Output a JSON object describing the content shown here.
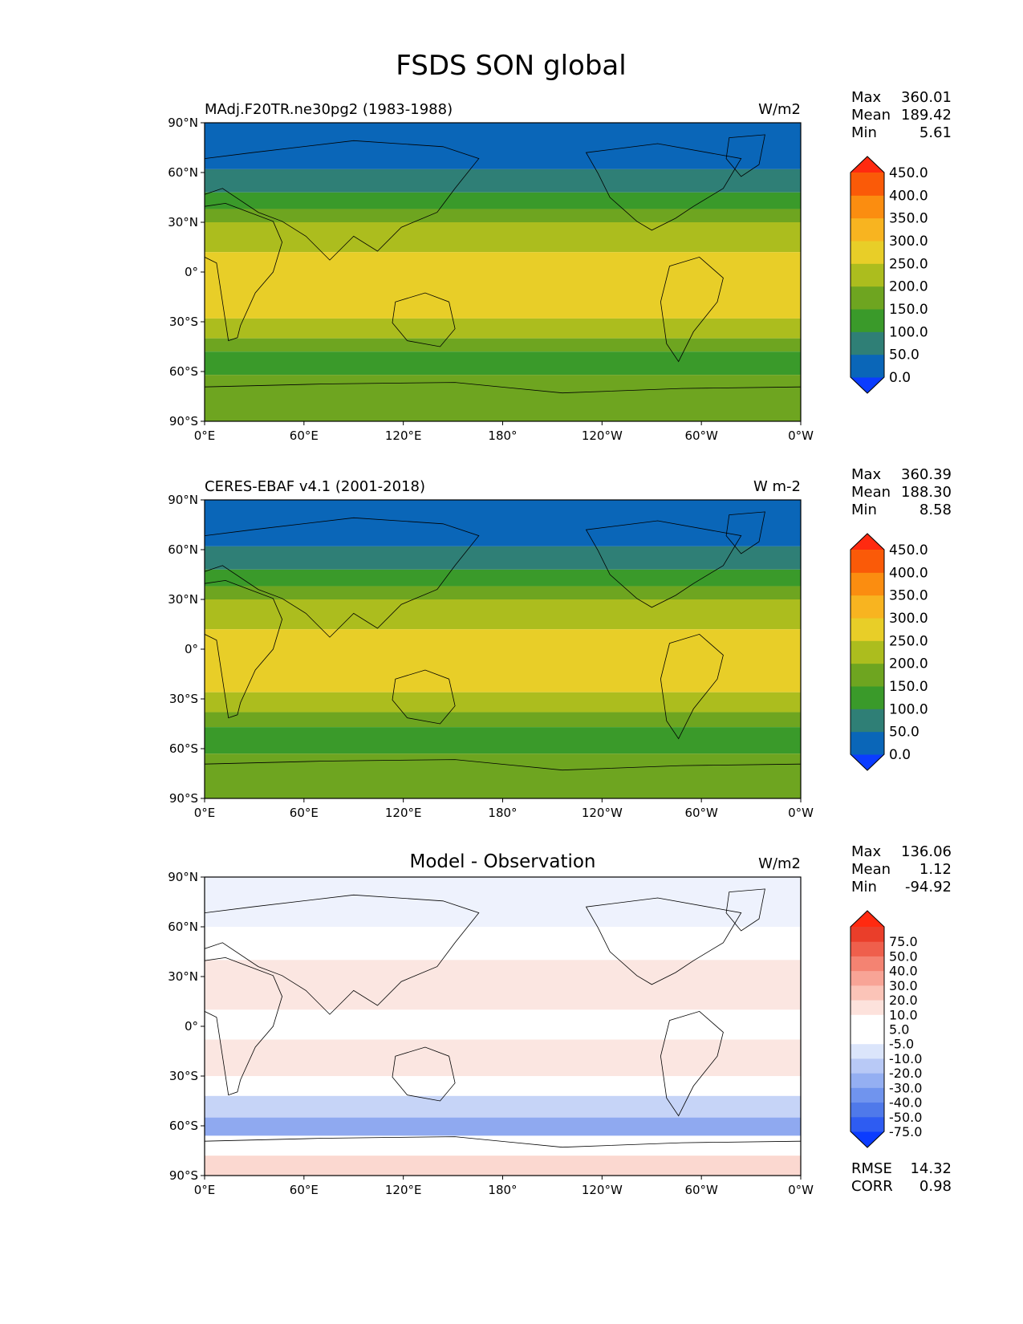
{
  "figure": {
    "title": "FSDS SON global"
  },
  "axes": {
    "lat_ticks": [
      "90°N",
      "60°N",
      "30°N",
      "0°",
      "30°S",
      "60°S",
      "90°S"
    ],
    "lon_ticks": [
      "0°E",
      "60°E",
      "120°E",
      "180°",
      "120°W",
      "60°W",
      "0°W"
    ]
  },
  "panels": [
    {
      "id": "model",
      "left_title": "MAdj.F20TR.ne30pg2 (1983-1988)",
      "center_title": "",
      "units": "W/m2",
      "stats": [
        {
          "label": "Max",
          "value": "360.01"
        },
        {
          "label": "Mean",
          "value": "189.42"
        },
        {
          "label": "Min",
          "value": "5.61"
        }
      ],
      "colorbar": {
        "colors": [
          "#0b3cff",
          "#0a66b8",
          "#2f7f76",
          "#3a9a2a",
          "#6ea520",
          "#acbd1e",
          "#e8ce28",
          "#f8b420",
          "#fb8d10",
          "#fa5a08",
          "#ff2a10"
        ],
        "labels": [
          "0.0",
          "50.0",
          "100.0",
          "150.0",
          "200.0",
          "250.0",
          "300.0",
          "350.0",
          "400.0",
          "450.0"
        ]
      },
      "bands": [
        {
          "lat_from": 90,
          "lat_to": 62,
          "color": "#0a66b8"
        },
        {
          "lat_from": 62,
          "lat_to": 48,
          "color": "#2f7f76"
        },
        {
          "lat_from": 48,
          "lat_to": 38,
          "color": "#3a9a2a"
        },
        {
          "lat_from": 38,
          "lat_to": 30,
          "color": "#6ea520"
        },
        {
          "lat_from": 30,
          "lat_to": 12,
          "color": "#acbd1e"
        },
        {
          "lat_from": 12,
          "lat_to": -28,
          "color": "#e8ce28"
        },
        {
          "lat_from": -28,
          "lat_to": -40,
          "color": "#acbd1e"
        },
        {
          "lat_from": -40,
          "lat_to": -48,
          "color": "#6ea520"
        },
        {
          "lat_from": -48,
          "lat_to": -62,
          "color": "#3a9a2a"
        },
        {
          "lat_from": -62,
          "lat_to": -90,
          "color": "#6ea520"
        }
      ]
    },
    {
      "id": "obs",
      "left_title": "CERES-EBAF v4.1 (2001-2018)",
      "center_title": "",
      "units": "W m-2",
      "stats": [
        {
          "label": "Max",
          "value": "360.39"
        },
        {
          "label": "Mean",
          "value": "188.30"
        },
        {
          "label": "Min",
          "value": "8.58"
        }
      ],
      "colorbar": {
        "colors": [
          "#0b3cff",
          "#0a66b8",
          "#2f7f76",
          "#3a9a2a",
          "#6ea520",
          "#acbd1e",
          "#e8ce28",
          "#f8b420",
          "#fb8d10",
          "#fa5a08",
          "#ff2a10"
        ],
        "labels": [
          "0.0",
          "50.0",
          "100.0",
          "150.0",
          "200.0",
          "250.0",
          "300.0",
          "350.0",
          "400.0",
          "450.0"
        ]
      },
      "bands": [
        {
          "lat_from": 90,
          "lat_to": 62,
          "color": "#0a66b8"
        },
        {
          "lat_from": 62,
          "lat_to": 48,
          "color": "#2f7f76"
        },
        {
          "lat_from": 48,
          "lat_to": 38,
          "color": "#3a9a2a"
        },
        {
          "lat_from": 38,
          "lat_to": 30,
          "color": "#6ea520"
        },
        {
          "lat_from": 30,
          "lat_to": 12,
          "color": "#acbd1e"
        },
        {
          "lat_from": 12,
          "lat_to": -26,
          "color": "#e8ce28"
        },
        {
          "lat_from": -26,
          "lat_to": -38,
          "color": "#acbd1e"
        },
        {
          "lat_from": -38,
          "lat_to": -47,
          "color": "#6ea520"
        },
        {
          "lat_from": -47,
          "lat_to": -63,
          "color": "#3a9a2a"
        },
        {
          "lat_from": -63,
          "lat_to": -90,
          "color": "#6ea520"
        }
      ]
    },
    {
      "id": "diff",
      "left_title": "",
      "center_title": "Model - Observation",
      "units": "W/m2",
      "stats": [
        {
          "label": "Max",
          "value": "136.06"
        },
        {
          "label": "Mean",
          "value": "1.12"
        },
        {
          "label": "Min",
          "value": "-94.92"
        }
      ],
      "bottom_stats": [
        {
          "label": "RMSE",
          "value": "14.32"
        },
        {
          "label": "CORR",
          "value": "0.98"
        }
      ],
      "colorbar": {
        "colors": [
          "#0b3cff",
          "#2e5cf2",
          "#4f79ea",
          "#7094ee",
          "#94aff2",
          "#b8c9f6",
          "#dbe5fb",
          "#ffffff",
          "#ffffff",
          "#fde2dc",
          "#fbc4b8",
          "#f8a496",
          "#f48372",
          "#ef5f4c",
          "#ea3e2a",
          "#ff2a10"
        ],
        "labels": [
          "-75.0",
          "-50.0",
          "-40.0",
          "-30.0",
          "-20.0",
          "-10.0",
          "-5.0",
          "5.0",
          "10.0",
          "20.0",
          "30.0",
          "40.0",
          "50.0",
          "75.0"
        ]
      },
      "bands": [
        {
          "lat_from": 90,
          "lat_to": 60,
          "color": "#eef2fd"
        },
        {
          "lat_from": 60,
          "lat_to": 40,
          "color": "#ffffff"
        },
        {
          "lat_from": 40,
          "lat_to": 10,
          "color": "#fbe6e1"
        },
        {
          "lat_from": 10,
          "lat_to": -8,
          "color": "#ffffff"
        },
        {
          "lat_from": -8,
          "lat_to": -30,
          "color": "#fbe6e1"
        },
        {
          "lat_from": -30,
          "lat_to": -42,
          "color": "#ffffff"
        },
        {
          "lat_from": -42,
          "lat_to": -55,
          "color": "#c6d4f7"
        },
        {
          "lat_from": -55,
          "lat_to": -66,
          "color": "#8fa9f0"
        },
        {
          "lat_from": -66,
          "lat_to": -78,
          "color": "#ffffff"
        },
        {
          "lat_from": -78,
          "lat_to": -90,
          "color": "#fbd8d0"
        }
      ]
    }
  ]
}
